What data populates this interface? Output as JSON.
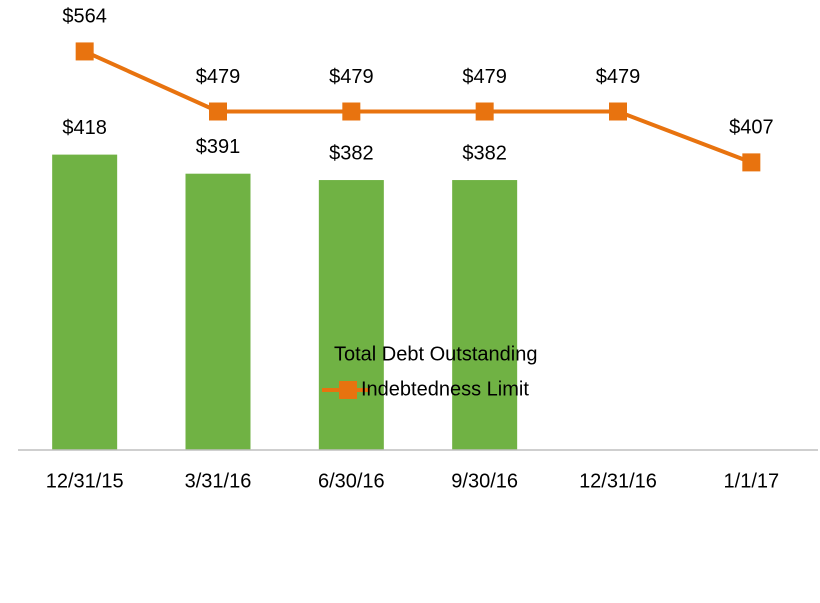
{
  "chart_data": {
    "type": "bar-line",
    "categories": [
      "12/31/15",
      "3/31/16",
      "6/30/16",
      "9/30/16",
      "12/31/16",
      "1/1/17"
    ],
    "ylim": [
      0,
      600
    ],
    "series": [
      {
        "name": "Total Debt Outstanding",
        "type": "bar",
        "color": "#70b244",
        "values": [
          418,
          391,
          382,
          382,
          null,
          null
        ],
        "value_labels": [
          "$418",
          "$391",
          "$382",
          "$382",
          null,
          null
        ]
      },
      {
        "name": "Indebtedness Limit",
        "type": "line",
        "color": "#e8730f",
        "values": [
          564,
          479,
          479,
          479,
          479,
          407
        ],
        "value_labels": [
          "$564",
          "$479",
          "$479",
          "$479",
          "$479",
          "$407"
        ]
      }
    ]
  }
}
